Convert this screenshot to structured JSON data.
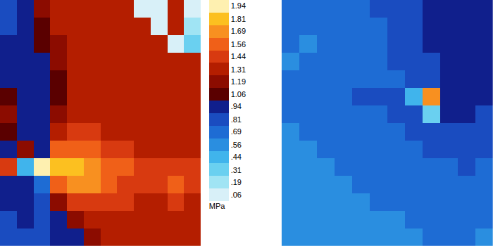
{
  "chart_data": [
    {
      "type": "heatmap",
      "tick_labels": false,
      "z": [
        [
          0.81,
          0.94,
          1.19,
          1.25,
          1.31,
          1.31,
          1.31,
          1.31,
          0.06,
          0.06,
          1.25,
          0.06
        ],
        [
          0.81,
          0.94,
          1.06,
          1.25,
          1.31,
          1.31,
          1.31,
          1.31,
          1.31,
          0.06,
          1.25,
          0.19
        ],
        [
          0.88,
          0.94,
          1.06,
          1.19,
          1.31,
          1.31,
          1.31,
          1.31,
          1.31,
          1.31,
          0.06,
          0.31
        ],
        [
          0.88,
          0.94,
          0.94,
          1.19,
          1.25,
          1.31,
          1.31,
          1.31,
          1.31,
          1.31,
          1.31,
          1.25
        ],
        [
          0.94,
          0.88,
          0.94,
          1.06,
          1.25,
          1.31,
          1.31,
          1.31,
          1.31,
          1.31,
          1.31,
          1.31
        ],
        [
          1.06,
          0.94,
          0.94,
          1.06,
          1.25,
          1.31,
          1.31,
          1.31,
          1.31,
          1.31,
          1.31,
          1.31
        ],
        [
          1.19,
          0.94,
          0.94,
          1.19,
          1.31,
          1.31,
          1.31,
          1.31,
          1.31,
          1.31,
          1.31,
          1.31
        ],
        [
          1.06,
          0.94,
          0.94,
          1.31,
          1.44,
          1.38,
          1.31,
          1.31,
          1.31,
          1.31,
          1.31,
          1.31
        ],
        [
          0.94,
          1.19,
          0.94,
          1.56,
          1.56,
          1.5,
          1.44,
          1.38,
          1.31,
          1.31,
          1.31,
          1.31
        ],
        [
          1.44,
          0.44,
          1.94,
          1.81,
          1.75,
          1.69,
          1.56,
          1.5,
          1.44,
          1.38,
          1.44,
          1.38
        ],
        [
          0.94,
          0.94,
          0.69,
          1.56,
          1.69,
          1.69,
          1.56,
          1.44,
          1.38,
          1.38,
          1.5,
          1.38
        ],
        [
          0.88,
          0.94,
          0.81,
          1.19,
          1.38,
          1.44,
          1.44,
          1.38,
          1.31,
          1.31,
          1.38,
          1.31
        ],
        [
          0.81,
          0.88,
          0.81,
          0.94,
          1.19,
          1.31,
          1.31,
          1.31,
          1.31,
          1.31,
          1.31,
          1.31
        ],
        [
          0.81,
          0.81,
          0.81,
          0.88,
          0.94,
          1.19,
          1.25,
          1.31,
          1.31,
          1.31,
          1.31,
          1.31
        ]
      ],
      "colorbar": {
        "title": "MPa",
        "range": [
          0,
          2
        ],
        "ticks": [
          {
            "value": 0.06,
            "label": ".06"
          },
          {
            "value": 0.19,
            "label": ".19"
          },
          {
            "value": 0.31,
            "label": ".31"
          },
          {
            "value": 0.44,
            "label": ".44"
          },
          {
            "value": 0.56,
            "label": ".56"
          },
          {
            "value": 0.69,
            "label": ".69"
          },
          {
            "value": 0.81,
            "label": ".81"
          },
          {
            "value": 0.94,
            "label": ".94"
          },
          1.06,
          1.19,
          1.31,
          1.44,
          1.56,
          1.69,
          1.81,
          1.94
        ]
      }
    },
    {
      "type": "heatmap",
      "tick_labels": false,
      "z": [
        [
          0.69,
          0.69,
          0.69,
          0.69,
          0.69,
          0.75,
          0.75,
          0.81,
          0.88,
          0.94,
          0.94,
          0.94
        ],
        [
          0.69,
          0.69,
          0.69,
          0.69,
          0.69,
          0.69,
          0.75,
          0.81,
          0.88,
          0.94,
          0.94,
          0.94
        ],
        [
          0.69,
          0.62,
          0.69,
          0.69,
          0.69,
          0.69,
          0.75,
          0.81,
          0.88,
          0.94,
          0.94,
          0.88
        ],
        [
          0.62,
          0.69,
          0.69,
          0.69,
          0.69,
          0.69,
          0.75,
          0.75,
          0.81,
          0.88,
          0.94,
          0.88
        ],
        [
          0.69,
          0.69,
          0.69,
          0.69,
          0.69,
          0.69,
          0.69,
          0.75,
          0.81,
          0.88,
          0.88,
          0.88
        ],
        [
          0.69,
          0.69,
          0.69,
          0.69,
          0.75,
          0.75,
          0.81,
          0.44,
          1.69,
          0.94,
          0.94,
          0.88
        ],
        [
          0.69,
          0.69,
          0.69,
          0.69,
          0.69,
          0.69,
          0.75,
          0.81,
          0.31,
          0.88,
          0.88,
          0.81
        ],
        [
          0.62,
          0.69,
          0.69,
          0.69,
          0.69,
          0.69,
          0.69,
          0.75,
          0.75,
          0.81,
          0.81,
          0.81
        ],
        [
          0.62,
          0.62,
          0.69,
          0.69,
          0.69,
          0.69,
          0.69,
          0.69,
          0.75,
          0.75,
          0.75,
          0.75
        ],
        [
          0.62,
          0.62,
          0.62,
          0.69,
          0.69,
          0.69,
          0.69,
          0.69,
          0.69,
          0.69,
          0.75,
          0.69
        ],
        [
          0.62,
          0.62,
          0.62,
          0.62,
          0.69,
          0.69,
          0.69,
          0.69,
          0.69,
          0.69,
          0.69,
          0.69
        ],
        [
          0.62,
          0.62,
          0.62,
          0.62,
          0.62,
          0.69,
          0.69,
          0.69,
          0.69,
          0.69,
          0.69,
          0.69
        ],
        [
          0.62,
          0.56,
          0.62,
          0.62,
          0.62,
          0.62,
          0.62,
          0.69,
          0.69,
          0.69,
          0.69,
          0.69
        ],
        [
          0.56,
          0.62,
          0.62,
          0.62,
          0.62,
          0.62,
          0.62,
          0.62,
          0.69,
          0.69,
          0.69,
          0.62
        ]
      ]
    }
  ]
}
